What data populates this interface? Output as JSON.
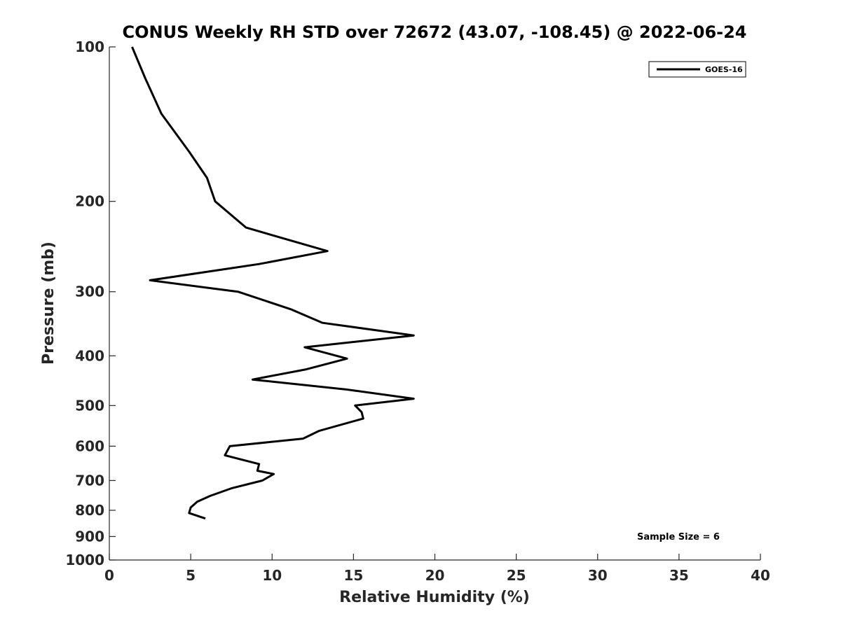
{
  "chart_data": {
    "type": "line",
    "title": "CONUS Weekly RH STD over 72672 (43.07, -108.45) @ 2022-06-24",
    "xlabel": "Relative Humidity (%)",
    "ylabel": "Pressure (mb)",
    "xlim": [
      0,
      40
    ],
    "ylim": [
      100,
      1000
    ],
    "yscale": "log",
    "yreversed": true,
    "grid": false,
    "legend_position": "top-right",
    "x_ticks": [
      "0",
      "5",
      "10",
      "15",
      "20",
      "25",
      "30",
      "35",
      "40"
    ],
    "y_ticks": [
      "100",
      "200",
      "300",
      "400",
      "500",
      "600",
      "700",
      "800",
      "900",
      "1000"
    ],
    "series": [
      {
        "name": "GOES-16",
        "color": "#000000",
        "points": [
          [
            1.4,
            100
          ],
          [
            2.2,
            115
          ],
          [
            3.2,
            135
          ],
          [
            4.9,
            160
          ],
          [
            6.0,
            180
          ],
          [
            6.5,
            200
          ],
          [
            8.4,
            225
          ],
          [
            13.4,
            250
          ],
          [
            9.2,
            265
          ],
          [
            2.5,
            285
          ],
          [
            7.9,
            300
          ],
          [
            11.2,
            325
          ],
          [
            13.1,
            345
          ],
          [
            18.7,
            365
          ],
          [
            12.0,
            385
          ],
          [
            14.6,
            405
          ],
          [
            12.1,
            425
          ],
          [
            8.8,
            445
          ],
          [
            14.5,
            465
          ],
          [
            18.7,
            485
          ],
          [
            15.1,
            500
          ],
          [
            15.5,
            515
          ],
          [
            15.6,
            530
          ],
          [
            12.9,
            560
          ],
          [
            11.9,
            580
          ],
          [
            7.4,
            600
          ],
          [
            7.1,
            625
          ],
          [
            9.2,
            650
          ],
          [
            9.1,
            670
          ],
          [
            10.1,
            680
          ],
          [
            9.4,
            700
          ],
          [
            7.5,
            725
          ],
          [
            6.2,
            750
          ],
          [
            5.4,
            770
          ],
          [
            5.0,
            790
          ],
          [
            4.9,
            810
          ],
          [
            5.9,
            830
          ]
        ]
      }
    ],
    "annotations": [
      "Sample Size = 6"
    ]
  }
}
